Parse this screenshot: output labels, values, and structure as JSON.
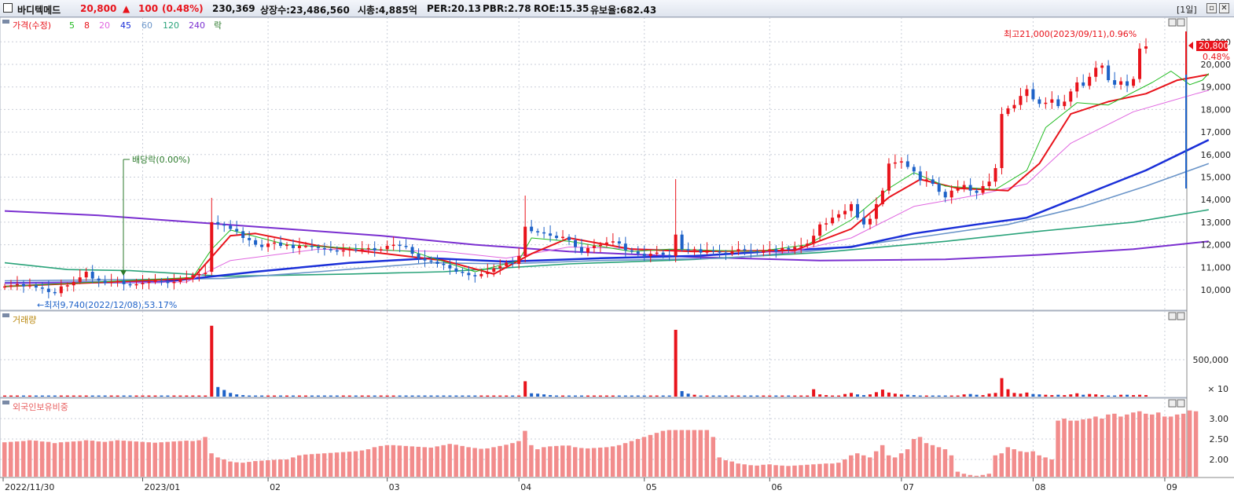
{
  "header": {
    "stock_name": "바디텍메드",
    "price": "20,800",
    "change_arrow": "▲",
    "change": "100",
    "change_pct": "(0.48%)",
    "volume": "230,369",
    "listed_shares": "상장수:23,486,560",
    "market_cap": "시총:4,885억",
    "per": "PER:20.13",
    "pbr": "PBR:2.78",
    "roe": "ROE:15.35",
    "retention": "유보율:682.43",
    "period": "[1일]"
  },
  "colors": {
    "up": "#e8131b",
    "down": "#1e62c8",
    "ma5": "#22bb22",
    "ma8": "#e8131b",
    "ma20": "#e066e0",
    "ma45": "#1a2fd8",
    "ma60": "#6b95c9",
    "ma120": "#2aa37a",
    "ma240": "#7a2fd0",
    "foreign": "#f28c8c"
  },
  "legend": {
    "price": "가격(수정)",
    "ma": [
      "5",
      "8",
      "20",
      "45",
      "60",
      "120",
      "240"
    ],
    "ex": "락",
    "volume": "거래량",
    "foreign": "외국인보유비중"
  },
  "annotations": {
    "high": "최고21,000(2023/09/11),0.96%",
    "low": "←최저9,740(2022/12/08),53.17%",
    "dividend": "배당락(0.00%)",
    "price_tag": "20,800",
    "pct_tag": "0.48%"
  },
  "chart_data": [
    {
      "type": "candlestick",
      "title": "가격(수정)",
      "x_ticks": [
        "2022/11/30",
        "2023/01",
        "02",
        "03",
        "04",
        "05",
        "06",
        "07",
        "08",
        "09"
      ],
      "y_ticks": [
        "10,000",
        "11,000",
        "12,000",
        "13,000",
        "14,000",
        "15,000",
        "16,000",
        "17,000",
        "18,000",
        "19,000",
        "20,000",
        "21,000"
      ],
      "ylim": [
        9500,
        21500
      ],
      "closes": [
        10150,
        10200,
        10250,
        10150,
        10200,
        10100,
        10050,
        9900,
        9850,
        10150,
        10200,
        10350,
        10550,
        10800,
        10500,
        10400,
        10300,
        10350,
        10400,
        10250,
        10200,
        10250,
        10300,
        10350,
        10400,
        10350,
        10300,
        10350,
        10450,
        10550,
        10650,
        10700,
        10750,
        13000,
        12900,
        12850,
        12700,
        12600,
        12300,
        12200,
        12000,
        11900,
        12050,
        12100,
        11950,
        12000,
        11850,
        11950,
        11950,
        11900,
        11850,
        11800,
        11750,
        11700,
        11750,
        11800,
        11750,
        11800,
        11850,
        11750,
        11800,
        11950,
        12000,
        11950,
        11900,
        11600,
        11400,
        11300,
        11250,
        11150,
        11100,
        10950,
        10800,
        10750,
        10650,
        10600,
        10700,
        10800,
        10950,
        11050,
        11200,
        11150,
        11500,
        12800,
        12600,
        12550,
        12500,
        12400,
        12300,
        12350,
        12200,
        11900,
        11650,
        11850,
        11950,
        12000,
        12100,
        12150,
        12050,
        11750,
        11700,
        11600,
        11500,
        11600,
        11650,
        11550,
        11500,
        12450,
        11800,
        11750,
        11800,
        11650,
        11750,
        11700,
        11650,
        11600,
        11700,
        11800,
        11750,
        11700,
        11650,
        11750,
        11800,
        11700,
        11850,
        11800,
        11900,
        11950,
        12050,
        12400,
        12900,
        12950,
        13200,
        13350,
        13500,
        13800,
        13200,
        12900,
        13150,
        13800,
        14400,
        15600,
        15650,
        15700,
        15450,
        15250,
        14850,
        14900,
        14700,
        14350,
        14100,
        14400,
        14500,
        14650,
        14400,
        14300,
        14600,
        14800,
        15400,
        17800,
        18050,
        18200,
        18600,
        18900,
        18450,
        18250,
        18300,
        18450,
        18150,
        18350,
        18800,
        19200,
        19050,
        19450,
        19850,
        19950,
        19300,
        19100,
        19250,
        19050,
        19350,
        20700,
        20800
      ],
      "ma": {
        "5": [
          [
            0,
            10150
          ],
          [
            30,
            10550
          ],
          [
            33,
            11800
          ],
          [
            36,
            12650
          ],
          [
            45,
            12000
          ],
          [
            65,
            11700
          ],
          [
            75,
            10800
          ],
          [
            82,
            11300
          ],
          [
            84,
            12300
          ],
          [
            90,
            12150
          ],
          [
            100,
            11700
          ],
          [
            106,
            11800
          ],
          [
            120,
            11700
          ],
          [
            128,
            12000
          ],
          [
            135,
            13100
          ],
          [
            141,
            14500
          ],
          [
            145,
            15200
          ],
          [
            150,
            14600
          ],
          [
            158,
            14450
          ],
          [
            163,
            15300
          ],
          [
            166,
            17200
          ],
          [
            171,
            18300
          ],
          [
            176,
            18200
          ],
          [
            183,
            19200
          ],
          [
            186,
            19700
          ],
          [
            189,
            19100
          ],
          [
            191,
            19300
          ],
          [
            192,
            19600
          ]
        ],
        "8": [
          [
            0,
            10150
          ],
          [
            30,
            10500
          ],
          [
            36,
            12400
          ],
          [
            40,
            12500
          ],
          [
            50,
            11950
          ],
          [
            70,
            11300
          ],
          [
            78,
            10700
          ],
          [
            84,
            11600
          ],
          [
            90,
            12300
          ],
          [
            100,
            11800
          ],
          [
            110,
            11700
          ],
          [
            126,
            11750
          ],
          [
            135,
            12700
          ],
          [
            141,
            14100
          ],
          [
            146,
            14900
          ],
          [
            152,
            14500
          ],
          [
            160,
            14400
          ],
          [
            165,
            15600
          ],
          [
            170,
            17800
          ],
          [
            176,
            18350
          ],
          [
            182,
            18700
          ],
          [
            187,
            19300
          ],
          [
            192,
            19550
          ]
        ],
        "20": [
          [
            0,
            10300
          ],
          [
            29,
            10350
          ],
          [
            36,
            11300
          ],
          [
            50,
            11800
          ],
          [
            70,
            11700
          ],
          [
            80,
            11400
          ],
          [
            90,
            11900
          ],
          [
            110,
            11750
          ],
          [
            125,
            11650
          ],
          [
            135,
            12300
          ],
          [
            145,
            13700
          ],
          [
            155,
            14200
          ],
          [
            163,
            14700
          ],
          [
            170,
            16500
          ],
          [
            180,
            17900
          ],
          [
            190,
            18700
          ],
          [
            192,
            18850
          ]
        ],
        "45": [
          [
            0,
            10300
          ],
          [
            25,
            10350
          ],
          [
            40,
            10800
          ],
          [
            55,
            11200
          ],
          [
            68,
            11400
          ],
          [
            80,
            11250
          ],
          [
            95,
            11400
          ],
          [
            110,
            11500
          ],
          [
            125,
            11750
          ],
          [
            135,
            11900
          ],
          [
            145,
            12500
          ],
          [
            155,
            12900
          ],
          [
            163,
            13200
          ],
          [
            172,
            14200
          ],
          [
            182,
            15300
          ],
          [
            192,
            16650
          ]
        ],
        "60": [
          [
            0,
            10400
          ],
          [
            20,
            10450
          ],
          [
            35,
            10500
          ],
          [
            50,
            10800
          ],
          [
            68,
            11200
          ],
          [
            80,
            11150
          ],
          [
            95,
            11300
          ],
          [
            115,
            11400
          ],
          [
            130,
            11750
          ],
          [
            145,
            12300
          ],
          [
            160,
            12900
          ],
          [
            172,
            13700
          ],
          [
            182,
            14600
          ],
          [
            192,
            15600
          ]
        ],
        "120": [
          [
            0,
            11200
          ],
          [
            10,
            10900
          ],
          [
            20,
            10850
          ],
          [
            35,
            10600
          ],
          [
            55,
            10700
          ],
          [
            70,
            10800
          ],
          [
            90,
            11150
          ],
          [
            110,
            11350
          ],
          [
            130,
            11650
          ],
          [
            150,
            12150
          ],
          [
            165,
            12600
          ],
          [
            180,
            13000
          ],
          [
            192,
            13550
          ]
        ],
        "240": [
          [
            0,
            13500
          ],
          [
            15,
            13300
          ],
          [
            30,
            13000
          ],
          [
            45,
            12700
          ],
          [
            60,
            12400
          ],
          [
            75,
            12000
          ],
          [
            90,
            11700
          ],
          [
            110,
            11450
          ],
          [
            130,
            11300
          ],
          [
            150,
            11350
          ],
          [
            165,
            11550
          ],
          [
            180,
            11800
          ],
          [
            192,
            12150
          ]
        ]
      }
    },
    {
      "type": "bar",
      "title": "거래량",
      "y_ticks": [
        "500,000"
      ],
      "unit_tag": "× 10",
      "ylim": [
        0,
        1000000
      ],
      "values": [
        15000,
        15000,
        15000,
        15000,
        15000,
        15000,
        15000,
        15000,
        15000,
        15000,
        15000,
        15000,
        15000,
        15000,
        15000,
        15000,
        15000,
        15000,
        15000,
        15000,
        15000,
        15000,
        15000,
        15000,
        15000,
        15000,
        15000,
        15000,
        15000,
        15000,
        15000,
        15000,
        15000,
        960000,
        130000,
        90000,
        50000,
        30000,
        20000,
        15000,
        15000,
        15000,
        15000,
        15000,
        15000,
        15000,
        15000,
        15000,
        15000,
        15000,
        15000,
        15000,
        15000,
        15000,
        15000,
        15000,
        15000,
        15000,
        15000,
        15000,
        15000,
        15000,
        15000,
        15000,
        15000,
        15000,
        15000,
        15000,
        15000,
        15000,
        15000,
        15000,
        15000,
        15000,
        15000,
        15000,
        15000,
        15000,
        15000,
        15000,
        15000,
        15000,
        15000,
        208000,
        45000,
        40000,
        30000,
        20000,
        15000,
        15000,
        15000,
        15000,
        15000,
        15000,
        15000,
        15000,
        15000,
        15000,
        15000,
        15000,
        15000,
        15000,
        15000,
        15000,
        15000,
        15000,
        15000,
        905000,
        75000,
        40000,
        25000,
        15000,
        15000,
        15000,
        15000,
        15000,
        15000,
        15000,
        15000,
        15000,
        15000,
        15000,
        15000,
        15000,
        15000,
        15000,
        15000,
        15000,
        15000,
        100000,
        30000,
        20000,
        15000,
        15000,
        35000,
        50000,
        30000,
        20000,
        30000,
        60000,
        95000,
        55000,
        40000,
        30000,
        25000,
        20000,
        15000,
        15000,
        15000,
        15000,
        15000,
        15000,
        15000,
        30000,
        35000,
        25000,
        20000,
        40000,
        50000,
        250000,
        100000,
        50000,
        40000,
        55000,
        35000,
        30000,
        25000,
        20000,
        25000,
        20000,
        30000,
        45000,
        25000,
        35000,
        30000,
        20000,
        15000,
        15000,
        25000,
        25000,
        20000,
        25000,
        20000
      ]
    },
    {
      "type": "bar",
      "title": "외국인보유비중",
      "y_ticks": [
        "2.00",
        "2.50",
        "3.00"
      ],
      "ylim": [
        1.55,
        3.3
      ],
      "values": [
        2.42,
        2.43,
        2.44,
        2.45,
        2.47,
        2.46,
        2.44,
        2.43,
        2.4,
        2.42,
        2.43,
        2.44,
        2.45,
        2.47,
        2.46,
        2.44,
        2.43,
        2.45,
        2.47,
        2.46,
        2.45,
        2.44,
        2.43,
        2.42,
        2.41,
        2.42,
        2.43,
        2.44,
        2.45,
        2.46,
        2.45,
        2.47,
        2.55,
        2.15,
        2.05,
        2.0,
        1.95,
        1.93,
        1.92,
        1.94,
        1.96,
        1.97,
        1.98,
        1.99,
        2.0,
        2.0,
        2.05,
        2.1,
        2.12,
        2.13,
        2.14,
        2.15,
        2.16,
        2.17,
        2.18,
        2.19,
        2.2,
        2.22,
        2.25,
        2.3,
        2.33,
        2.35,
        2.35,
        2.34,
        2.33,
        2.32,
        2.31,
        2.3,
        2.29,
        2.32,
        2.35,
        2.38,
        2.36,
        2.33,
        2.3,
        2.28,
        2.26,
        2.27,
        2.3,
        2.33,
        2.36,
        2.4,
        2.45,
        2.7,
        2.35,
        2.25,
        2.3,
        2.32,
        2.33,
        2.34,
        2.34,
        2.3,
        2.28,
        2.27,
        2.28,
        2.29,
        2.3,
        2.32,
        2.35,
        2.4,
        2.45,
        2.5,
        2.55,
        2.6,
        2.65,
        2.7,
        2.72,
        2.72,
        2.72,
        2.72,
        2.72,
        2.72,
        2.72,
        2.55,
        2.05,
        1.98,
        1.95,
        1.9,
        1.88,
        1.86,
        1.85,
        1.87,
        1.88,
        1.86,
        1.85,
        1.84,
        1.85,
        1.86,
        1.87,
        1.88,
        1.89,
        1.9,
        1.9,
        1.92,
        2.0,
        2.1,
        2.15,
        2.1,
        2.05,
        2.2,
        2.35,
        2.1,
        2.05,
        2.15,
        2.25,
        2.5,
        2.55,
        2.4,
        2.35,
        2.3,
        2.25,
        2.1,
        1.7,
        1.65,
        1.62,
        1.6,
        1.62,
        1.65,
        2.1,
        2.15,
        2.3,
        2.25,
        2.2,
        2.18,
        2.2,
        2.1,
        2.05,
        2.0,
        2.95,
        3.0,
        2.95,
        2.95,
        2.98,
        3.0,
        3.05,
        3.0,
        3.1,
        3.12,
        3.05,
        3.1,
        3.15,
        3.18,
        3.12,
        3.1,
        3.15,
        3.05,
        3.05,
        3.1,
        3.12,
        3.2,
        3.18
      ]
    }
  ]
}
